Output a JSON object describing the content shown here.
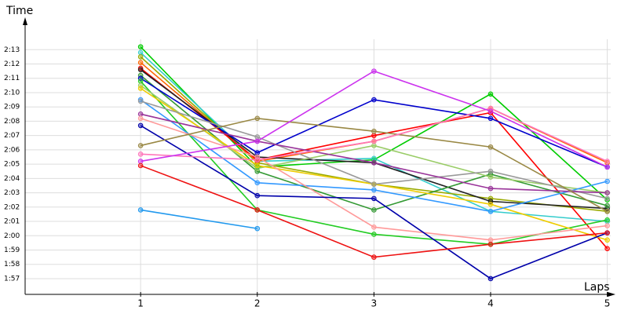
{
  "chart_data": {
    "type": "line",
    "y_label": "Time",
    "x_label": "Laps",
    "x": [
      1,
      2,
      3,
      4,
      5
    ],
    "xlim": [
      0.01,
      5.07
    ],
    "xticks": [
      1,
      2,
      3,
      4,
      5
    ],
    "ylim": [
      115.9,
      135.1
    ],
    "yticks": [
      {
        "value": 117,
        "label": "1:57"
      },
      {
        "value": 118,
        "label": "1:58"
      },
      {
        "value": 119,
        "label": "1:59"
      },
      {
        "value": 120,
        "label": "2:00"
      },
      {
        "value": 121,
        "label": "2:01"
      },
      {
        "value": 122,
        "label": "2:02"
      },
      {
        "value": 123,
        "label": "2:03"
      },
      {
        "value": 124,
        "label": "2:04"
      },
      {
        "value": 125,
        "label": "2:05"
      },
      {
        "value": 126,
        "label": "2:06"
      },
      {
        "value": 127,
        "label": "2:07"
      },
      {
        "value": 128,
        "label": "2:08"
      },
      {
        "value": 129,
        "label": "2:09"
      },
      {
        "value": 130,
        "label": "2:10"
      },
      {
        "value": 131,
        "label": "2:11"
      },
      {
        "value": 132,
        "label": "2:12"
      },
      {
        "value": 133,
        "label": "2:13"
      }
    ],
    "grid": true,
    "series": [
      {
        "color": "#00cc00",
        "values": [
          133.2,
          124.8,
          125.3,
          129.9,
          122.5
        ]
      },
      {
        "color": "#33cccc",
        "values": [
          132.8,
          125.2,
          125.4,
          121.7,
          121.0
        ]
      },
      {
        "color": "#99aa00",
        "values": [
          132.5,
          125.1,
          123.6,
          122.6,
          121.7
        ]
      },
      {
        "color": "#ff6600",
        "values": [
          132.1,
          125.2,
          126.6,
          128.9,
          125.1
        ]
      },
      {
        "color": "#ff0000",
        "values": [
          131.7,
          125.3,
          127.0,
          128.6,
          119.1
        ]
      },
      {
        "color": "#222222",
        "values": [
          131.6,
          125.5,
          125.1,
          122.4,
          121.9
        ]
      },
      {
        "color": "#339933",
        "values": [
          131.2,
          124.5,
          121.8,
          124.3,
          122.1
        ]
      },
      {
        "color": "#0000cc",
        "values": [
          131.0,
          125.8,
          129.5,
          128.2,
          124.8
        ]
      },
      {
        "color": "#22cc22",
        "values": [
          130.8,
          121.8,
          120.1,
          119.4,
          121.1
        ]
      },
      {
        "color": "#99cc66",
        "values": [
          130.5,
          124.7,
          126.3,
          124.1,
          123.0
        ]
      },
      {
        "color": "#eecc00",
        "values": [
          130.3,
          124.9,
          123.6,
          122.2,
          119.7
        ]
      },
      {
        "color": "#3399ff",
        "values": [
          129.5,
          123.7,
          123.2,
          121.7,
          123.8
        ]
      },
      {
        "color": "#999999",
        "values": [
          129.4,
          126.9,
          123.6,
          124.5,
          122.6
        ]
      },
      {
        "color": "#993399",
        "values": [
          128.5,
          126.6,
          125.1,
          123.3,
          123.0
        ]
      },
      {
        "color": "#ff9999",
        "values": [
          128.2,
          125.5,
          120.6,
          119.7,
          120.7
        ]
      },
      {
        "color": "#0000aa",
        "values": [
          127.7,
          122.8,
          122.6,
          117.0,
          120.2
        ]
      },
      {
        "color": "#998844",
        "values": [
          126.3,
          128.2,
          127.3,
          126.2,
          121.7
        ]
      },
      {
        "color": "#ff77bb",
        "values": [
          125.7,
          125.3,
          126.6,
          128.9,
          125.2
        ]
      },
      {
        "color": "#cc33ee",
        "values": [
          125.2,
          126.6,
          131.5,
          128.7,
          124.8
        ]
      },
      {
        "color": "#ee1111",
        "values": [
          124.9,
          121.8,
          118.5,
          119.4,
          120.2
        ]
      },
      {
        "color": "#2299ee",
        "values": [
          121.8,
          120.5,
          null,
          null,
          null
        ]
      }
    ]
  }
}
